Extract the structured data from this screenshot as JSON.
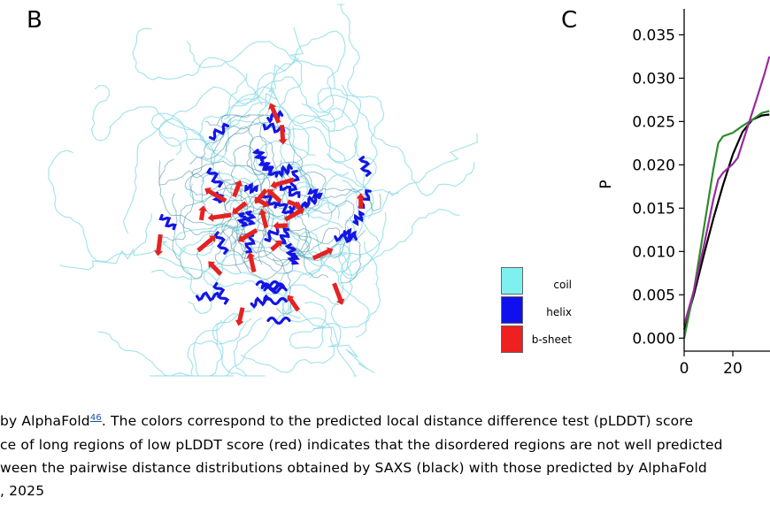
{
  "panel_b": {
    "letter": "B",
    "legend": [
      {
        "label": "coil",
        "color": "#7ff0f0"
      },
      {
        "label": "helix",
        "color": "#1010ee"
      },
      {
        "label": "b-sheet",
        "color": "#ee2020"
      }
    ]
  },
  "panel_c": {
    "letter": "C",
    "chart_data": {
      "type": "line",
      "ylabel": "P",
      "xlabel": "",
      "y_ticks": [
        "0.000",
        "0.005",
        "0.010",
        "0.015",
        "0.020",
        "0.025",
        "0.030",
        "0.035"
      ],
      "x_ticks": [
        "0",
        "20"
      ],
      "xlim": [
        0,
        35
      ],
      "ylim": [
        -0.0015,
        0.038
      ],
      "series": [
        {
          "color": "#000000",
          "x": [
            0,
            4,
            8,
            12,
            16,
            20,
            24,
            28,
            32,
            35
          ],
          "y": [
            0.001,
            0.005,
            0.0095,
            0.0138,
            0.0177,
            0.0212,
            0.0238,
            0.0252,
            0.0257,
            0.0258
          ]
        },
        {
          "color": "#2e8b2e",
          "x": [
            0,
            4,
            8,
            12,
            14,
            16,
            18,
            20,
            24,
            28,
            32,
            35
          ],
          "y": [
            0.0,
            0.0055,
            0.0125,
            0.0195,
            0.0225,
            0.0233,
            0.0235,
            0.0237,
            0.0245,
            0.0252,
            0.026,
            0.0262
          ]
        },
        {
          "color": "#9b2a9b",
          "x": [
            0,
            4,
            8,
            12,
            14,
            16,
            18,
            20,
            22,
            26,
            30,
            33,
            35
          ],
          "y": [
            0.0015,
            0.0055,
            0.0105,
            0.016,
            0.0183,
            0.0191,
            0.0196,
            0.0201,
            0.0208,
            0.0243,
            0.0278,
            0.0305,
            0.0325
          ]
        }
      ]
    }
  },
  "caption": {
    "line1_pre": "by AlphaFold",
    "line1_ref": "46",
    "line1_post": ". The colors correspond to the predicted local distance difference test (pLDDT) score",
    "line2": "ce of long regions of low pLDDT score (red) indicates that the disordered regions are not well predicted",
    "line3": "ween the pairwise distance distributions obtained by SAXS (black) with those predicted by AlphaFold",
    "line4": ", 2025"
  }
}
